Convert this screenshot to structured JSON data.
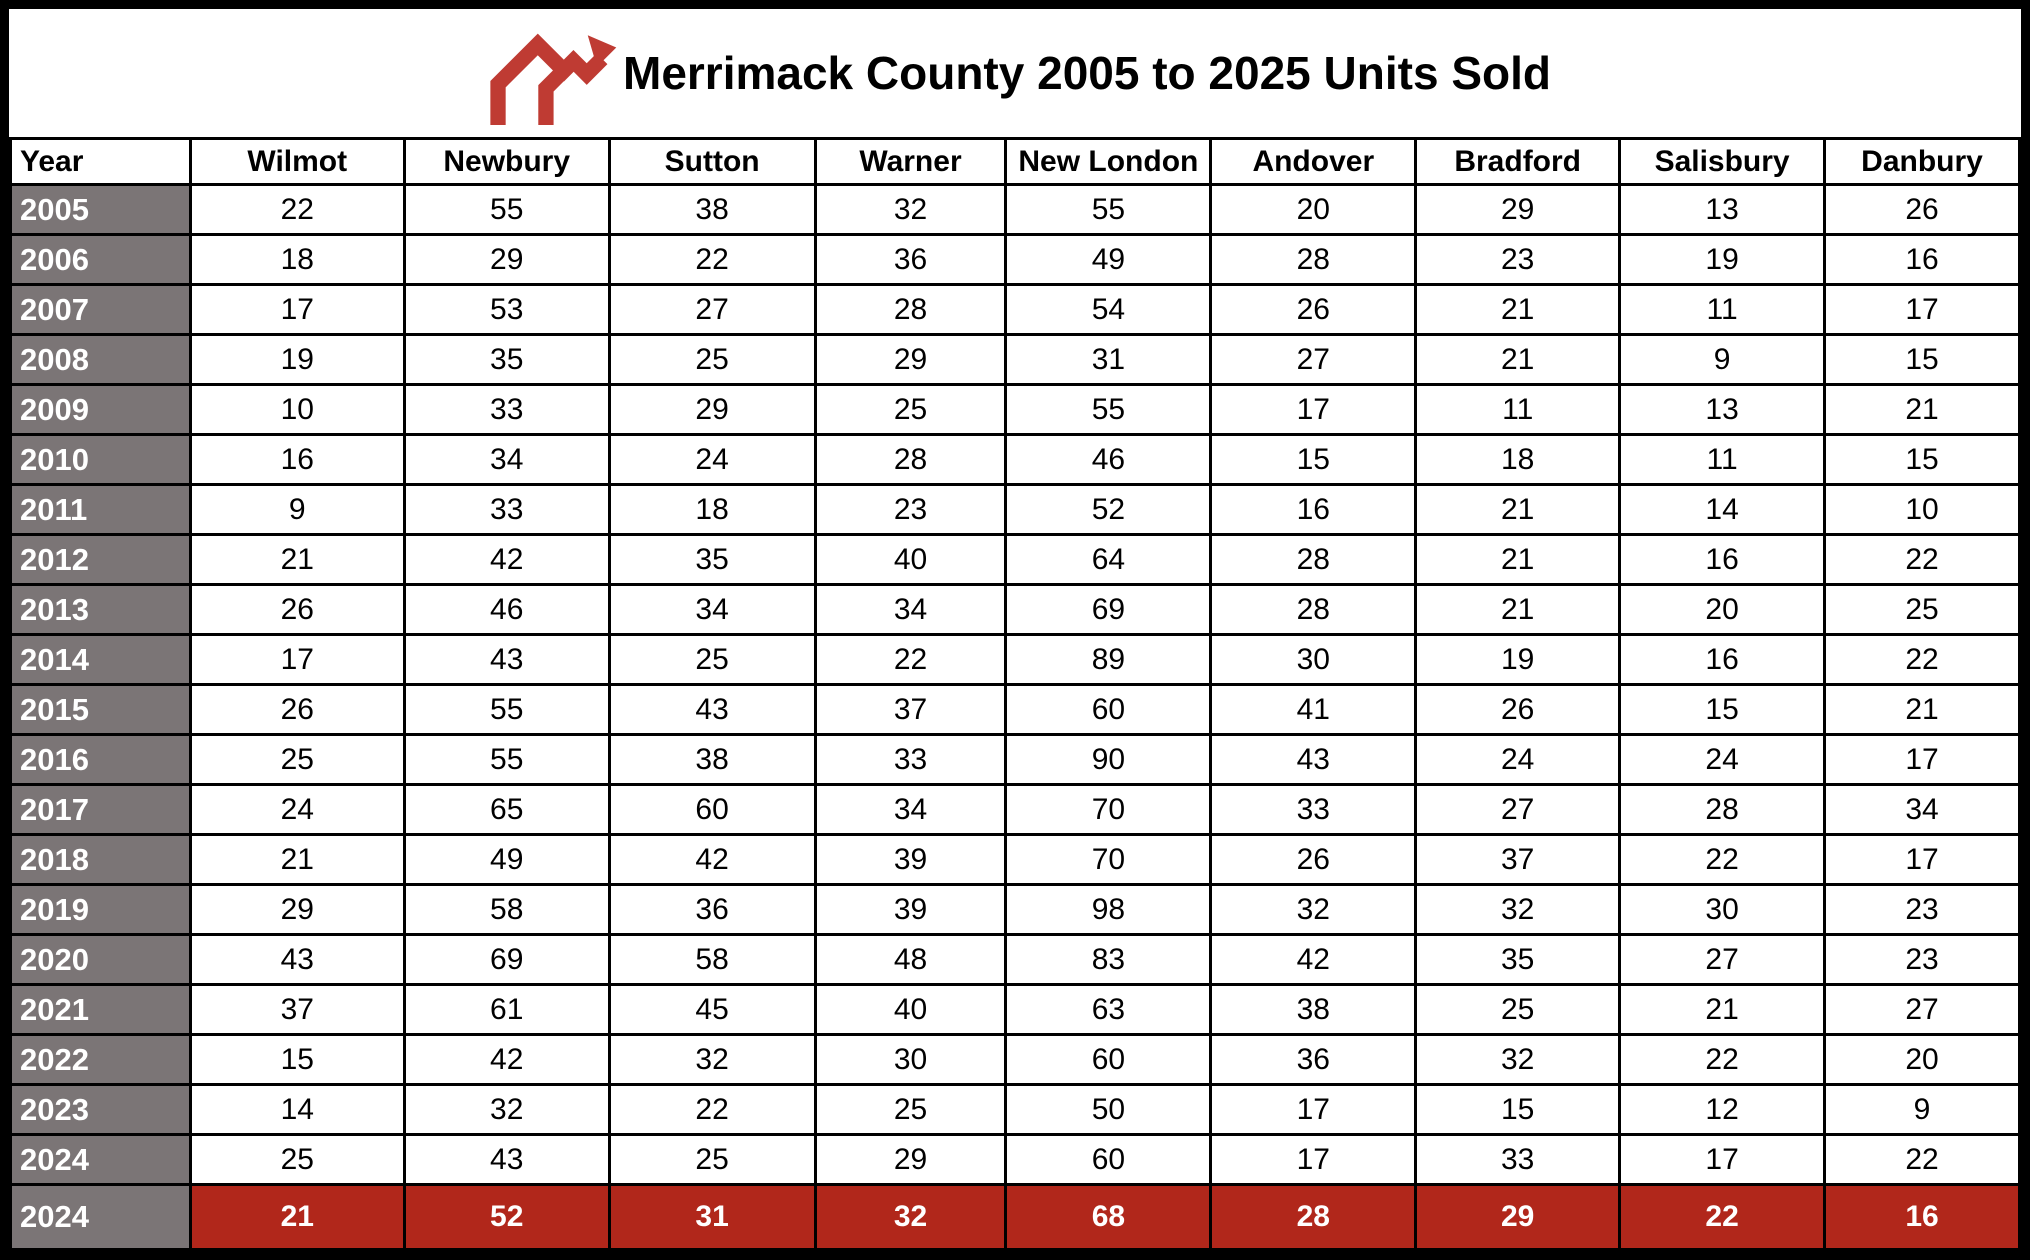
{
  "title": "Merrimack County 2005 to 2025 Units Sold",
  "logo": {
    "description": "red double roofline with arrow logo",
    "color": "#bf3b33"
  },
  "colors": {
    "year_column_bg": "#7b7576",
    "total_row_bg": "#b1271b",
    "grid": "#000000",
    "text": "#000000",
    "inverse_text": "#ffffff"
  },
  "chart_data": {
    "type": "table",
    "title": "Merrimack County 2005 to 2025 Units Sold",
    "columns": [
      "Year",
      "Wilmot",
      "Newbury",
      "Sutton",
      "Warner",
      "New London",
      "Andover",
      "Bradford",
      "Salisbury",
      "Danbury"
    ],
    "rows": [
      [
        "2005",
        22,
        55,
        38,
        32,
        55,
        20,
        29,
        13,
        26
      ],
      [
        "2006",
        18,
        29,
        22,
        36,
        49,
        28,
        23,
        19,
        16
      ],
      [
        "2007",
        17,
        53,
        27,
        28,
        54,
        26,
        21,
        11,
        17
      ],
      [
        "2008",
        19,
        35,
        25,
        29,
        31,
        27,
        21,
        9,
        15
      ],
      [
        "2009",
        10,
        33,
        29,
        25,
        55,
        17,
        11,
        13,
        21
      ],
      [
        "2010",
        16,
        34,
        24,
        28,
        46,
        15,
        18,
        11,
        15
      ],
      [
        "2011",
        9,
        33,
        18,
        23,
        52,
        16,
        21,
        14,
        10
      ],
      [
        "2012",
        21,
        42,
        35,
        40,
        64,
        28,
        21,
        16,
        22
      ],
      [
        "2013",
        26,
        46,
        34,
        34,
        69,
        28,
        21,
        20,
        25
      ],
      [
        "2014",
        17,
        43,
        25,
        22,
        89,
        30,
        19,
        16,
        22
      ],
      [
        "2015",
        26,
        55,
        43,
        37,
        60,
        41,
        26,
        15,
        21
      ],
      [
        "2016",
        25,
        55,
        38,
        33,
        90,
        43,
        24,
        24,
        17
      ],
      [
        "2017",
        24,
        65,
        60,
        34,
        70,
        33,
        27,
        28,
        34
      ],
      [
        "2018",
        21,
        49,
        42,
        39,
        70,
        26,
        37,
        22,
        17
      ],
      [
        "2019",
        29,
        58,
        36,
        39,
        98,
        32,
        32,
        30,
        23
      ],
      [
        "2020",
        43,
        69,
        58,
        48,
        83,
        42,
        35,
        27,
        23
      ],
      [
        "2021",
        37,
        61,
        45,
        40,
        63,
        38,
        25,
        21,
        27
      ],
      [
        "2022",
        15,
        42,
        32,
        30,
        60,
        36,
        32,
        22,
        20
      ],
      [
        "2023",
        14,
        32,
        22,
        25,
        50,
        17,
        15,
        12,
        9
      ],
      [
        "2024",
        25,
        43,
        25,
        29,
        60,
        17,
        33,
        17,
        22
      ]
    ],
    "total_row": [
      "2024",
      21,
      52,
      31,
      32,
      68,
      28,
      29,
      22,
      16
    ],
    "layout": {
      "grid": true,
      "year_column_shaded": true,
      "last_row_highlighted": true
    }
  }
}
